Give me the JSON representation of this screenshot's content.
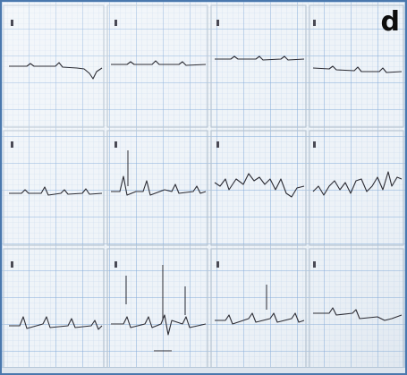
{
  "figure": {
    "panel_label": "d",
    "subject": "ecg-strip-photo",
    "colors": {
      "paper": "#eef3f8",
      "grid_minor": "#c6d8ec",
      "grid_major": "#7fa8d8",
      "trace": "#2c2c34",
      "frame": "#4a78ad"
    }
  }
}
